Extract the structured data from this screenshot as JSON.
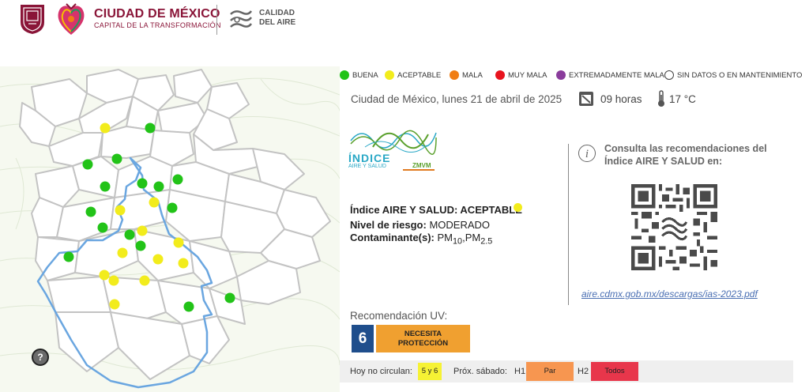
{
  "header": {
    "title": "CIUDAD DE MÉXICO",
    "subtitle": "CAPITAL DE LA TRANSFORMACIÓN",
    "calidad_aire_line1": "CALIDAD",
    "calidad_aire_line2": "DEL AIRE"
  },
  "legend": [
    {
      "label": "BUENA",
      "color": "#22c318"
    },
    {
      "label": "ACEPTABLE",
      "color": "#f2ec1c"
    },
    {
      "label": "MALA",
      "color": "#f07d14"
    },
    {
      "label": "MUY MALA",
      "color": "#e8141e"
    },
    {
      "label": "EXTREMADAMENTE MALA",
      "color": "#8a3c9c"
    },
    {
      "label": "SIN DATOS O EN MANTENIMIENTO",
      "color": "#ffffff"
    }
  ],
  "conditions": {
    "date": "Ciudad de México, lunes 21 de abril de 2025",
    "hour": "09 horas",
    "temperature": "17 °C",
    "calendar_icon": "calendar-icon",
    "thermometer_icon": "thermometer-icon"
  },
  "index": {
    "logo_title": "ÍNDICE",
    "logo_subtitle": "AIRE Y SALUD",
    "logo_region": "ZMVM",
    "label": "Índice AIRE Y SALUD: ACEPTABLE",
    "status_color": "#f2ec1c",
    "risk_label": "Nivel de riesgo:",
    "risk_value": "MODERADO",
    "pollutant_label": "Contaminante(s):",
    "pollutant_1": "PM",
    "pollutant_1_sub": "10",
    "pollutant_sep": ",",
    "pollutant_2": "PM",
    "pollutant_2_sub": "2.5"
  },
  "recommendations": {
    "text": "Consulta las recomendaciones del Índice AIRE Y SALUD en:",
    "link": "aire.cdmx.gob.mx/descargas/ias-2023.pdf"
  },
  "uv": {
    "title": "Recomendación UV:",
    "value": "6",
    "label": "NECESITA PROTECCIÓN",
    "value_color": "#1f4e8c",
    "label_color": "#f0a030"
  },
  "hoy_no_circula": {
    "label": "Hoy no circulan:",
    "value": "5 y 6",
    "proximo_label": "Próx. sábado:",
    "h1_label": "H1",
    "h1_value": "Par",
    "h2_label": "H2",
    "h2_value": "Todos"
  },
  "map": {
    "help": "?",
    "stations": [
      {
        "status": "BUENA",
        "color": "#22c318"
      },
      {
        "status": "ACEPTABLE",
        "color": "#f2ec1c"
      }
    ]
  }
}
